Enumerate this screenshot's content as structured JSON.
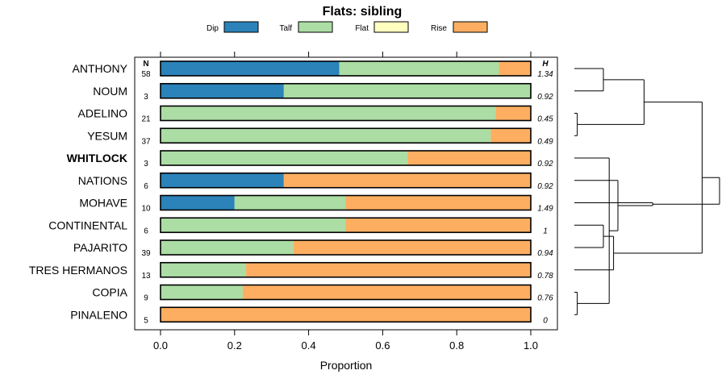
{
  "chart_data": {
    "type": "bar",
    "stacked": true,
    "orientation": "horizontal",
    "title": "Flats: sibling",
    "xlabel": "Proportion",
    "xlim": [
      0,
      1
    ],
    "xticks": [
      "0.0",
      "0.2",
      "0.4",
      "0.6",
      "0.8",
      "1.0"
    ],
    "n_header": "N",
    "h_header": "H",
    "legend": [
      {
        "name": "Dip",
        "color": "#2b83ba"
      },
      {
        "name": "Talf",
        "color": "#abdda4"
      },
      {
        "name": "Flat",
        "color": "#ffffbf"
      },
      {
        "name": "Rise",
        "color": "#fdae61"
      }
    ],
    "highlighted": "WHITLOCK",
    "categories": [
      "ANTHONY",
      "NOUM",
      "ADELINO",
      "YESUM",
      "WHITLOCK",
      "NATIONS",
      "MOHAVE",
      "CONTINENTAL",
      "PAJARITO",
      "TRES HERMANOS",
      "COPIA",
      "PINALENO"
    ],
    "n": [
      "58",
      "3",
      "21",
      "37",
      "3",
      "6",
      "10",
      "6",
      "39",
      "13",
      "9",
      "5"
    ],
    "h": [
      "1.34",
      "0.92",
      "0.45",
      "0.49",
      "0.92",
      "0.92",
      "1.49",
      "1",
      "0.94",
      "0.78",
      "0.76",
      "0"
    ],
    "series": [
      {
        "name": "Dip",
        "values": [
          0.483,
          0.333,
          0,
          0,
          0,
          0.333,
          0.2,
          0,
          0,
          0,
          0,
          0
        ]
      },
      {
        "name": "Talf",
        "values": [
          0.431,
          0.667,
          0.905,
          0.892,
          0.667,
          0,
          0.3,
          0.5,
          0.359,
          0.231,
          0.222,
          0
        ]
      },
      {
        "name": "Flat",
        "values": [
          0,
          0,
          0,
          0,
          0,
          0,
          0,
          0,
          0,
          0,
          0,
          0
        ]
      },
      {
        "name": "Rise",
        "values": [
          0.086,
          0,
          0.095,
          0.108,
          0.333,
          0.667,
          0.5,
          0.5,
          0.641,
          0.769,
          0.778,
          1
        ]
      }
    ],
    "dendrogram": {
      "leaves": [
        "ANTHONY",
        "NOUM",
        "ADELINO",
        "YESUM",
        "WHITLOCK",
        "NATIONS",
        "MOHAVE",
        "CONTINENTAL",
        "PAJARITO",
        "TRES HERMANOS",
        "COPIA",
        "PINALENO"
      ],
      "merges": [
        {
          "left": 2,
          "right": 3,
          "height": 0.02
        },
        {
          "left": 10,
          "right": 11,
          "height": 0.02
        },
        {
          "left": 7,
          "right": 8,
          "height": 0.2
        },
        {
          "left": 0,
          "right": 1,
          "height": 0.2
        },
        {
          "left": 13,
          "right": 4,
          "height": 0.24
        },
        {
          "left": 14,
          "right": 9,
          "height": 0.27
        },
        {
          "left": 16,
          "right": 5,
          "height": 0.3
        },
        {
          "left": 12,
          "right": 15,
          "height": 0.48
        },
        {
          "left": 18,
          "right": 6,
          "height": 0.54
        },
        {
          "left": 17,
          "right": 19,
          "height": 0.88
        },
        {
          "left": 20,
          "right": 21,
          "height": 1.0
        }
      ]
    }
  }
}
